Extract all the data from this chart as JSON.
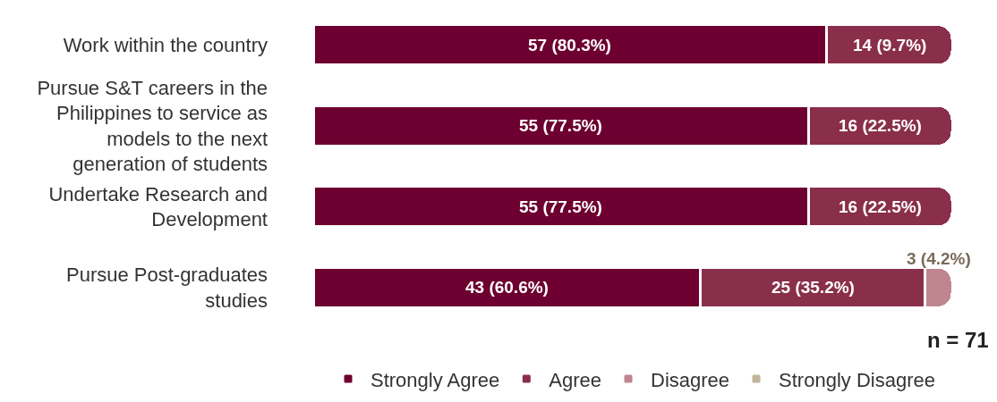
{
  "chart_data": {
    "type": "bar",
    "orientation": "horizontal",
    "stacked": true,
    "legend": "bottom",
    "categories": [
      "Work within the country",
      "Pursue S&T careers in the Philippines to service as models to the next generation of students",
      "Undertake Research and Development",
      "Pursue Post-graduates studies"
    ],
    "series": [
      {
        "name": "Strongly Agree",
        "color": "#6d0030",
        "values": [
          57,
          55,
          55,
          43
        ],
        "value_labels": [
          "57 (80.3%)",
          "55 (77.5%)",
          "55 (77.5%)",
          "43 (60.6%)"
        ]
      },
      {
        "name": "Agree",
        "color": "#8a2f4b",
        "values": [
          14,
          16,
          16,
          25
        ],
        "value_labels": [
          "14 (9.7%)",
          "16 (22.5%)",
          "16 (22.5%)",
          "25 (35.2%)"
        ]
      },
      {
        "name": "Disagree",
        "color": "#c0868f",
        "values": [
          null,
          null,
          null,
          3
        ],
        "value_labels": [
          null,
          null,
          null,
          "3 (4.2%)"
        ]
      },
      {
        "name": "Strongly Disagree",
        "color": "#c2b59a",
        "values": [
          null,
          null,
          null,
          null
        ],
        "value_labels": [
          null,
          null,
          null,
          null
        ]
      }
    ],
    "annotations": [
      "n = 71"
    ]
  }
}
